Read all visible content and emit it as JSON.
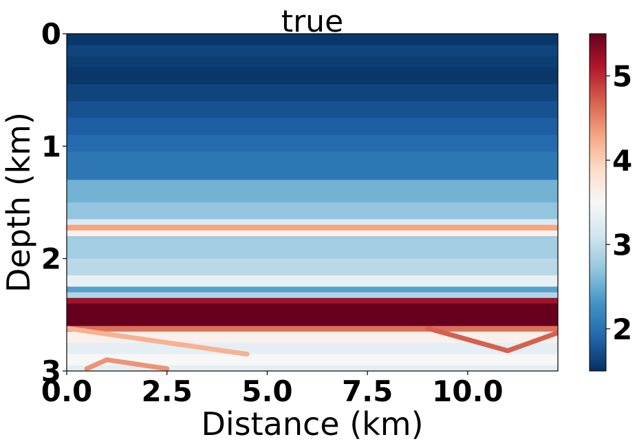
{
  "chart_data": {
    "type": "heatmap",
    "title": "true",
    "xlabel": "Distance (km)",
    "ylabel": "Depth (km)",
    "xlim": [
      0,
      12.25
    ],
    "ylim": [
      0,
      3
    ],
    "y_inverted": true,
    "x_ticks": [
      "0.0",
      "2.5",
      "5.0",
      "7.5",
      "10.0"
    ],
    "y_ticks": [
      "0",
      "1",
      "2",
      "3"
    ],
    "colorbar": {
      "colormap": "RdBu_r",
      "range": [
        1.5,
        5.5
      ],
      "ticks": [
        "2",
        "3",
        "4",
        "5"
      ]
    },
    "layers": [
      {
        "depth_top": 0.0,
        "depth_bottom": 0.1,
        "value": 1.55
      },
      {
        "depth_top": 0.1,
        "depth_bottom": 0.2,
        "value": 1.65
      },
      {
        "depth_top": 0.2,
        "depth_bottom": 0.3,
        "value": 1.6
      },
      {
        "depth_top": 0.3,
        "depth_bottom": 0.45,
        "value": 1.55
      },
      {
        "depth_top": 0.45,
        "depth_bottom": 0.6,
        "value": 1.65
      },
      {
        "depth_top": 0.6,
        "depth_bottom": 0.75,
        "value": 1.75
      },
      {
        "depth_top": 0.75,
        "depth_bottom": 0.9,
        "value": 1.85
      },
      {
        "depth_top": 0.9,
        "depth_bottom": 1.05,
        "value": 1.95
      },
      {
        "depth_top": 1.05,
        "depth_bottom": 1.3,
        "value": 2.05
      },
      {
        "depth_top": 1.3,
        "depth_bottom": 1.5,
        "value": 2.55
      },
      {
        "depth_top": 1.5,
        "depth_bottom": 1.65,
        "value": 2.7
      },
      {
        "depth_top": 1.65,
        "depth_bottom": 1.7,
        "value": 3.2
      },
      {
        "depth_top": 1.7,
        "depth_bottom": 1.75,
        "value": 4.3
      },
      {
        "depth_top": 1.75,
        "depth_bottom": 1.8,
        "value": 3.6
      },
      {
        "depth_top": 1.8,
        "depth_bottom": 2.0,
        "value": 2.8
      },
      {
        "depth_top": 2.0,
        "depth_bottom": 2.15,
        "value": 2.95
      },
      {
        "depth_top": 2.15,
        "depth_bottom": 2.25,
        "value": 3.35
      },
      {
        "depth_top": 2.25,
        "depth_bottom": 2.3,
        "value": 2.4
      },
      {
        "depth_top": 2.3,
        "depth_bottom": 2.35,
        "value": 2.9
      },
      {
        "depth_top": 2.35,
        "depth_bottom": 2.4,
        "value": 5.2
      },
      {
        "depth_top": 2.4,
        "depth_bottom": 2.6,
        "value": 5.5
      },
      {
        "depth_top": 2.6,
        "depth_bottom": 2.65,
        "value": 4.6
      },
      {
        "depth_top": 2.65,
        "depth_bottom": 2.75,
        "value": 3.6
      },
      {
        "depth_top": 2.75,
        "depth_bottom": 2.85,
        "value": 3.3
      },
      {
        "depth_top": 2.85,
        "depth_bottom": 2.95,
        "value": 3.5
      },
      {
        "depth_top": 2.95,
        "depth_bottom": 3.0,
        "value": 3.3
      }
    ],
    "dipping_reflectors": [
      {
        "x_start": 0.0,
        "depth_start": 2.62,
        "x_end": 4.5,
        "depth_end": 2.85,
        "value": 4.2
      },
      {
        "x_start": 0.5,
        "depth_start": 2.98,
        "x_end": 1.0,
        "depth_end": 2.9,
        "value": 4.4
      },
      {
        "x_start": 1.0,
        "depth_start": 2.9,
        "x_end": 2.5,
        "depth_end": 2.98,
        "value": 4.4
      },
      {
        "x_start": 9.0,
        "depth_start": 2.62,
        "x_end": 11.0,
        "depth_end": 2.82,
        "value": 4.7
      },
      {
        "x_start": 11.0,
        "depth_start": 2.82,
        "x_end": 12.25,
        "depth_end": 2.66,
        "value": 4.7
      }
    ]
  }
}
